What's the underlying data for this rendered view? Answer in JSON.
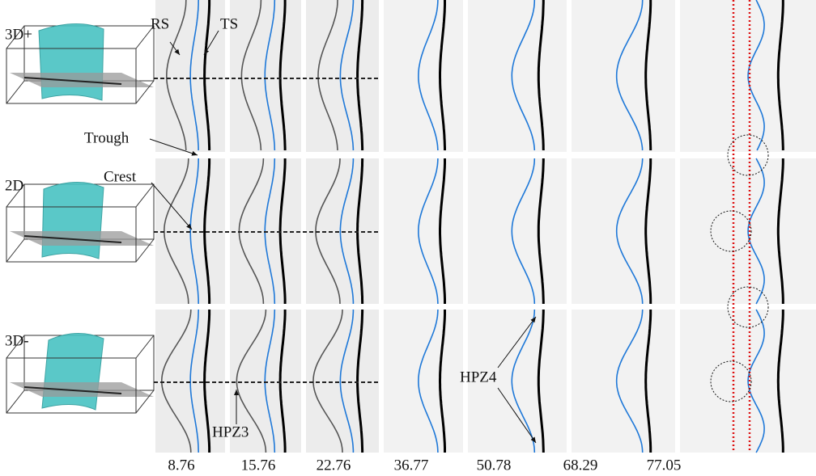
{
  "rows": [
    {
      "label": "3D+"
    },
    {
      "label": "2D"
    },
    {
      "label": "3D-"
    }
  ],
  "columns": [
    "8.76",
    "15.76",
    "22.76",
    "36.77",
    "50.78",
    "68.29",
    "77.05"
  ],
  "annotations": {
    "rs": "RS",
    "ts": "TS",
    "trough": "Trough",
    "crest": "Crest",
    "hpz3": "HPZ3",
    "hpz4": "HPZ4"
  }
}
